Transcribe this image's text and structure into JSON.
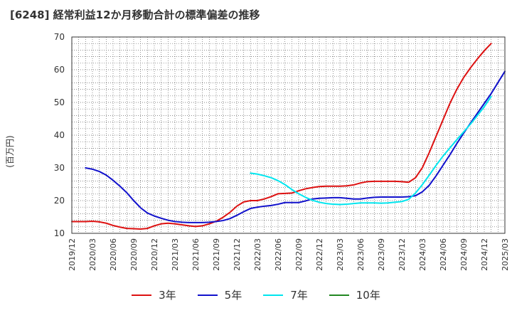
{
  "chart_data": {
    "type": "line",
    "title": "[6248]  経常利益12か月移動合計の標準偏差の推移",
    "xlabel": "",
    "ylabel": "(百万円)",
    "ylim": [
      10,
      70
    ],
    "yticks": [
      10,
      20,
      30,
      40,
      50,
      60,
      70
    ],
    "x_start": "2019/12",
    "x_step_months": 1,
    "xticks": [
      "2019/12",
      "2020/03",
      "2020/06",
      "2020/09",
      "2020/12",
      "2021/03",
      "2021/06",
      "2021/09",
      "2021/12",
      "2022/03",
      "2022/06",
      "2022/09",
      "2022/12",
      "2023/03",
      "2023/06",
      "2023/09",
      "2023/12",
      "2024/03",
      "2024/06",
      "2024/09",
      "2024/12",
      "2025/03"
    ],
    "grid": true,
    "legend_position": "bottom",
    "series": [
      {
        "name": "3年",
        "color": "#dd1111",
        "start": "2019/12",
        "values": [
          13.6,
          13.6,
          13.6,
          13.7,
          13.5,
          13.1,
          12.4,
          11.9,
          11.5,
          11.4,
          11.3,
          11.5,
          12.3,
          12.9,
          13.1,
          12.9,
          12.6,
          12.3,
          12.1,
          12.3,
          12.9,
          13.7,
          14.9,
          16.4,
          18.3,
          19.6,
          20.0,
          20.0,
          20.5,
          21.2,
          22.1,
          22.2,
          22.3,
          23.0,
          23.6,
          24.0,
          24.3,
          24.4,
          24.4,
          24.4,
          24.5,
          24.8,
          25.4,
          25.8,
          25.9,
          25.9,
          25.9,
          25.9,
          25.8,
          25.6,
          27.0,
          30.1,
          34.7,
          39.7,
          44.7,
          49.7,
          54.0,
          57.6,
          60.6,
          63.3,
          65.8,
          68.0
        ]
      },
      {
        "name": "5年",
        "color": "#1111cc",
        "start": "2020/02",
        "values": [
          30.0,
          29.6,
          28.9,
          27.8,
          26.2,
          24.4,
          22.4,
          20.0,
          17.8,
          16.2,
          15.3,
          14.6,
          14.0,
          13.6,
          13.4,
          13.3,
          13.3,
          13.3,
          13.4,
          13.6,
          13.9,
          14.5,
          15.5,
          16.6,
          17.6,
          18.0,
          18.3,
          18.5,
          18.9,
          19.4,
          19.4,
          19.4,
          19.9,
          20.5,
          20.7,
          20.8,
          20.9,
          20.9,
          20.7,
          20.5,
          20.5,
          20.8,
          21.0,
          21.1,
          21.1,
          21.1,
          21.1,
          21.2,
          21.5,
          22.7,
          24.7,
          27.6,
          30.8,
          34.0,
          37.4,
          40.6,
          43.7,
          46.7,
          49.7,
          52.7,
          56.1,
          59.5
        ]
      },
      {
        "name": "7年",
        "color": "#00e5ee",
        "start": "2022/02",
        "values": [
          28.4,
          28.1,
          27.6,
          27.0,
          26.1,
          24.9,
          23.4,
          22.1,
          21.0,
          20.1,
          19.5,
          19.1,
          18.9,
          18.8,
          18.9,
          19.1,
          19.3,
          19.3,
          19.3,
          19.2,
          19.3,
          19.5,
          19.7,
          20.4,
          22.3,
          24.9,
          27.8,
          30.8,
          33.6,
          36.1,
          38.6,
          41.0,
          43.4,
          46.0,
          48.7,
          51.8
        ]
      },
      {
        "name": "10年",
        "color": "#228822",
        "start": "2019/12",
        "values": []
      }
    ]
  }
}
